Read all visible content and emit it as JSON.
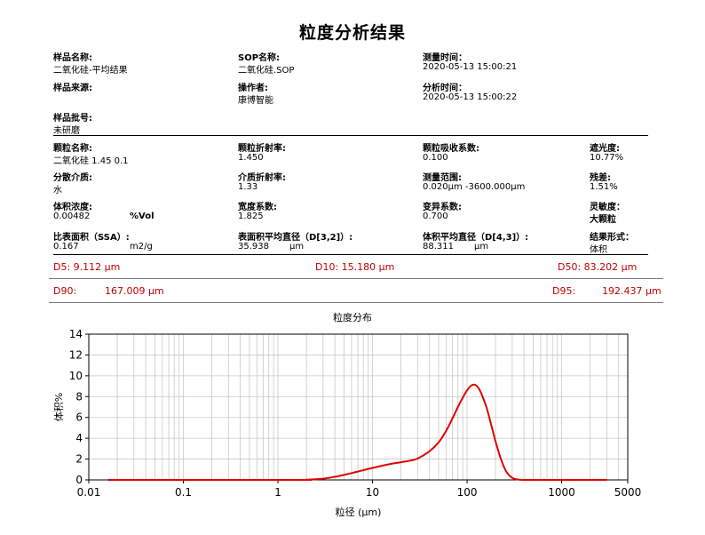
{
  "report": {
    "title": "粒度分析结果"
  },
  "info": {
    "sample_name_label": "样品名称:",
    "sample_name": "二氧化硅-平均结果",
    "sop_label": "SOP名称:",
    "sop": "二氧化硅.SOP",
    "measure_time_label": "测量时间：",
    "measure_time": "2020-05-13 15:00:21",
    "sample_source_label": "样品来源:",
    "operator_label": "操作者:",
    "operator": "康博智能",
    "analysis_time_label": "分析时间：",
    "analysis_time": "2020-05-13 15:00:22",
    "batch_label": "样品批号:",
    "batch": "未研磨"
  },
  "params": {
    "particle_name_label": "颗粒名称:",
    "particle_name": "二氧化硅 1.45 0.1",
    "particle_ri_label": "颗粒折射率:",
    "particle_ri": "1.450",
    "absorption_label": "颗粒吸收系数:",
    "absorption": "0.100",
    "obscuration_label": "遮光度:",
    "obscuration": "10.77%",
    "dispersant_label": "分散介质:",
    "dispersant": "水",
    "medium_ri_label": "介质折射率:",
    "medium_ri": "1.33",
    "range_label": "测量范围:",
    "range": "0.020μm -3600.000μm",
    "residual_label": "残差:",
    "residual": "1.51%",
    "concentration_label": "体积浓度:",
    "concentration": "0.00482",
    "concentration_unit": "%Vol",
    "span_label": "宽度系数:",
    "span": "1.825",
    "variation_label": "变异系数:",
    "variation": "0.700",
    "sensitivity_label": "灵敏度：",
    "sensitivity": "大颗粒",
    "ssa_label": "比表面积（SSA）:",
    "ssa": "0.167",
    "ssa_unit": "m2/g",
    "d32_label": "表面积平均直径（D[3,2]）:",
    "d32": "35.938",
    "d32_unit": "μm",
    "d43_label": "体积平均直径（D[4,3]）:",
    "d43": "88.311",
    "d43_unit": "μm",
    "result_form_label": "结果形式：",
    "result_form": "体积"
  },
  "percentiles": {
    "d5": "D5: 9.112  μm",
    "d10": "D10: 15.180  μm",
    "d50": "D50: 83.202  μm",
    "d90_label": "D90:",
    "d90": "167.009  μm",
    "d95_label": "D95:",
    "d95": "192.437  μm"
  },
  "chart_data": {
    "type": "line",
    "title": "粒度分布",
    "xlabel": "粒径 (μm)",
    "ylabel": "体积%",
    "x_scale": "log",
    "xlim": [
      0.01,
      5000
    ],
    "ylim": [
      0,
      14
    ],
    "x_ticks": [
      "0.01",
      "0.1",
      "1",
      "10",
      "100",
      "1000",
      "5000"
    ],
    "y_ticks": [
      "0",
      "2",
      "4",
      "6",
      "8",
      "10",
      "12",
      "14"
    ],
    "grid": true,
    "line_color": "#e00000",
    "series": [
      {
        "x": [
          0.016,
          1.5,
          2,
          3,
          4,
          5,
          7,
          10,
          15,
          20,
          25,
          30,
          40,
          50,
          60,
          70,
          80,
          90,
          100,
          110,
          120,
          130,
          140,
          160,
          180,
          200,
          230,
          260,
          300,
          350,
          400,
          500,
          1000,
          3000
        ],
        "y": [
          0,
          0,
          0.02,
          0.12,
          0.3,
          0.48,
          0.8,
          1.15,
          1.5,
          1.7,
          1.85,
          2.05,
          2.75,
          3.6,
          4.7,
          5.9,
          7.0,
          7.9,
          8.6,
          9.05,
          9.15,
          8.9,
          8.4,
          7.0,
          5.3,
          3.7,
          1.9,
          0.8,
          0.2,
          0.03,
          0,
          0,
          0,
          0
        ]
      }
    ]
  }
}
